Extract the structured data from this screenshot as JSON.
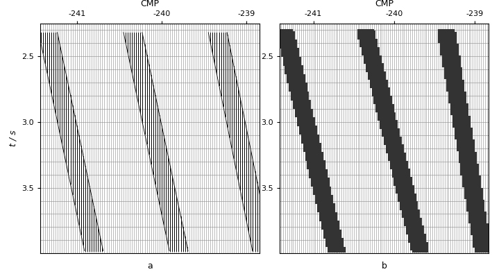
{
  "chart_data": [
    {
      "type": "wiggle",
      "caption": "a",
      "xlabel": "CMP",
      "ylabel": "t / s",
      "xlim": [
        -241.43,
        -238.85
      ],
      "xticks": [
        -241,
        -240,
        -239
      ],
      "ylim": [
        4.0,
        2.25
      ],
      "yticks": [
        2.5,
        {
          "value": 3,
          "label": "3.0"
        },
        3.5
      ],
      "grid": true,
      "series": [
        {
          "color": "#000000",
          "x": [
            -241.34,
            -240.8
          ],
          "values": [
            2.32,
            3.98
          ]
        },
        {
          "color": "#000000",
          "x": [
            -240.34,
            -239.8
          ],
          "values": [
            2.32,
            3.98
          ]
        },
        {
          "color": "#000000",
          "x": [
            -239.34,
            -238.82
          ],
          "values": [
            2.32,
            3.98
          ]
        }
      ]
    },
    {
      "type": "density",
      "caption": "b",
      "xlabel": "CMP",
      "xlim": [
        -241.42,
        -238.83
      ],
      "xticks": [
        -241,
        -240,
        -239
      ],
      "ylim": [
        4.0,
        2.25
      ],
      "yticks": [
        2.5,
        {
          "value": 3,
          "label": "3.0"
        },
        3.5
      ],
      "grid": true,
      "series": [
        {
          "color": "#333333",
          "x": [
            -241.36,
            -240.72
          ],
          "values": [
            2.3,
            3.98
          ]
        },
        {
          "color": "#333333",
          "x": [
            -240.36,
            -239.68
          ],
          "values": [
            2.3,
            3.98
          ]
        },
        {
          "color": "#333333",
          "x": [
            -239.36,
            -238.9
          ],
          "values": [
            2.3,
            3.98
          ]
        }
      ]
    }
  ]
}
